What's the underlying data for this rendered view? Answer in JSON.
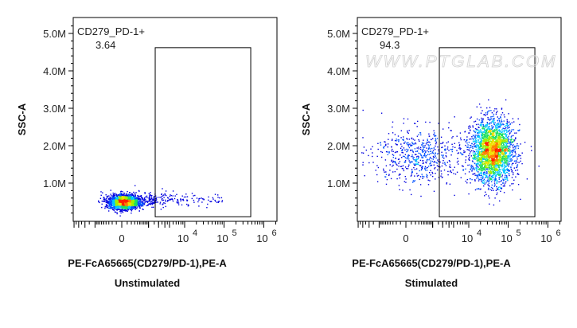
{
  "watermark": "WWW.PTGLAB.COM",
  "chart_data": [
    {
      "type": "scatter",
      "subtitle": "Unstimulated",
      "xlabel": "PE-FcA65665(CD279/PD-1),PE-A",
      "ylabel": "SSC-A",
      "x_scale": "biexponential",
      "xlim": [
        -4200,
        2140000
      ],
      "ylim": [
        0,
        5450000
      ],
      "xticks": [
        {
          "label": "0",
          "v": 0
        },
        {
          "label": "10",
          "exp": "4",
          "v": 10000
        },
        {
          "label": "10",
          "exp": "5",
          "v": 100000
        },
        {
          "label": "10",
          "exp": "6",
          "v": 1000000
        }
      ],
      "yticks": [
        {
          "label": "1.0M",
          "v": 1000000
        },
        {
          "label": "2.0M",
          "v": 2000000
        },
        {
          "label": "3.0M",
          "v": 3000000
        },
        {
          "label": "4.0M",
          "v": 4000000
        },
        {
          "label": "5.0M",
          "v": 5000000
        }
      ],
      "gate": {
        "name": "CD279_PD-1+",
        "percent": "3.64",
        "x": [
          1600,
          470000
        ],
        "y": [
          100000,
          4620000
        ]
      },
      "populations": [
        {
          "x_center": 30,
          "x_sigma_decades": 0.17,
          "y_center": 500000,
          "y_sigma": 90000,
          "count": 2200
        },
        {
          "x_center": 150,
          "x_sigma_decades": 0.35,
          "y_center": 550000,
          "y_sigma": 110000,
          "count": 300
        },
        {
          "x_min": 1000,
          "x_max": 90000,
          "y_center": 580000,
          "y_sigma": 90000,
          "count": 160
        }
      ]
    },
    {
      "type": "scatter",
      "subtitle": "Stimulated",
      "xlabel": "PE-FcA65665(CD279/PD-1),PE-A",
      "ylabel": "SSC-A",
      "x_scale": "biexponential",
      "xlim": [
        -4200,
        2140000
      ],
      "ylim": [
        0,
        5450000
      ],
      "xticks": [
        {
          "label": "0",
          "v": 0
        },
        {
          "label": "10",
          "exp": "4",
          "v": 10000
        },
        {
          "label": "10",
          "exp": "5",
          "v": 100000
        },
        {
          "label": "10",
          "exp": "6",
          "v": 1000000
        }
      ],
      "yticks": [
        {
          "label": "1.0M",
          "v": 1000000
        },
        {
          "label": "2.0M",
          "v": 2000000
        },
        {
          "label": "3.0M",
          "v": 3000000
        },
        {
          "label": "4.0M",
          "v": 4000000
        },
        {
          "label": "5.0M",
          "v": 5000000
        }
      ],
      "gate": {
        "name": "CD279_PD-1+",
        "percent": "94.3",
        "x": [
          1600,
          470000
        ],
        "y": [
          100000,
          4620000
        ]
      },
      "populations": [
        {
          "x_center": 40000,
          "x_sigma_decades": 0.27,
          "y_center": 1850000,
          "y_sigma": 420000,
          "count": 2600
        },
        {
          "x_center": 300,
          "x_sigma_decades": 0.6,
          "y_center": 1750000,
          "y_sigma": 380000,
          "count": 600
        }
      ]
    }
  ]
}
